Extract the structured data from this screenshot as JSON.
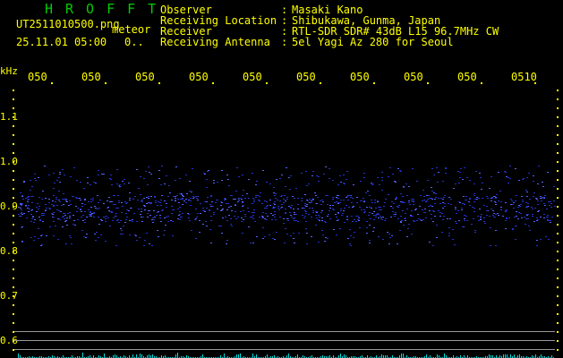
{
  "header": {
    "title": "HROFFT",
    "filename": "UT2511010500.png",
    "datetime": "25.11.01 05:00",
    "mode": "meteor",
    "count": "0..",
    "info": [
      {
        "label": "Observer",
        "value": "Masaki Kano"
      },
      {
        "label": "Receiving Location",
        "value": "Shibukawa, Gunma, Japan"
      },
      {
        "label": "Receiver",
        "value": "RTL-SDR SDR# 43dB L15 96.7MHz CW"
      },
      {
        "label": "Receiving Antenna",
        "value": "5el Yagi Az 280 for Seoul"
      }
    ]
  },
  "axis": {
    "unit": "kHz",
    "time_labels": [
      "0501",
      "0502",
      "0503",
      "0504",
      "0505",
      "0506",
      "0507",
      "0508",
      "0509",
      "0510"
    ],
    "freq_labels": [
      "1.1",
      "1.0",
      "0.9",
      "0.8",
      "0.7",
      "0.6"
    ]
  },
  "colors": {
    "text": "#ffff00",
    "title": "#00cc00",
    "signal": "#3344ff",
    "noise": "#00e0e0",
    "grid": "#999999"
  }
}
